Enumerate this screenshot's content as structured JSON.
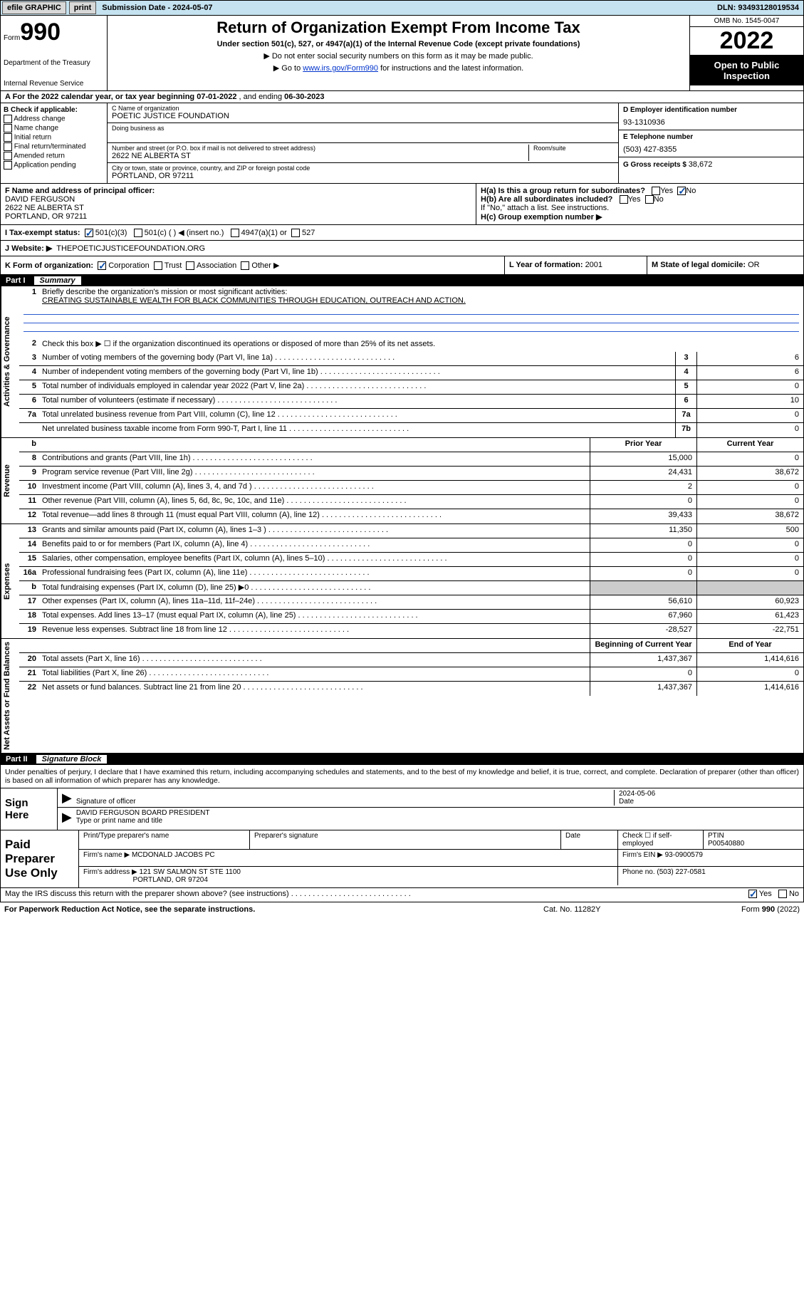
{
  "topbar": {
    "efile": "efile GRAPHIC",
    "print": "print",
    "submission_label": "Submission Date - ",
    "submission_date": "2024-05-07",
    "dln_label": "DLN: ",
    "dln": "93493128019534"
  },
  "header": {
    "form_word": "Form",
    "form_number": "990",
    "dept": "Department of the Treasury",
    "irs": "Internal Revenue Service",
    "title": "Return of Organization Exempt From Income Tax",
    "sub": "Under section 501(c), 527, or 4947(a)(1) of the Internal Revenue Code (except private foundations)",
    "note1": "▶ Do not enter social security numbers on this form as it may be made public.",
    "note2_pre": "▶ Go to ",
    "note2_link": "www.irs.gov/Form990",
    "note2_post": " for instructions and the latest information.",
    "omb": "OMB No. 1545-0047",
    "year": "2022",
    "open": "Open to Public Inspection"
  },
  "row_a": {
    "text_pre": "A For the 2022 calendar year, or tax year beginning ",
    "begin": "07-01-2022",
    "mid": " , and ending ",
    "end": "06-30-2023"
  },
  "col_b": {
    "title": "B Check if applicable:",
    "items": [
      "Address change",
      "Name change",
      "Initial return",
      "Final return/terminated",
      "Amended return",
      "Application pending"
    ]
  },
  "col_c": {
    "name_lbl": "C Name of organization",
    "name": "POETIC JUSTICE FOUNDATION",
    "dba_lbl": "Doing business as",
    "dba": "",
    "street_lbl": "Number and street (or P.O. box if mail is not delivered to street address)",
    "room_lbl": "Room/suite",
    "street": "2622 NE ALBERTA ST",
    "city_lbl": "City or town, state or province, country, and ZIP or foreign postal code",
    "city": "PORTLAND, OR  97211"
  },
  "col_d": {
    "ein_lbl": "D Employer identification number",
    "ein": "93-1310936",
    "phone_lbl": "E Telephone number",
    "phone": "(503) 427-8355",
    "gross_lbl": "G Gross receipts $ ",
    "gross": "38,672"
  },
  "row_f": {
    "f_lbl": "F Name and address of principal officer:",
    "f_name": "DAVID FERGUSON",
    "f_addr1": "2622 NE ALBERTA ST",
    "f_addr2": "PORTLAND, OR  97211",
    "i_lbl": "I   Tax-exempt status:",
    "i_501c3": "501(c)(3)",
    "i_501c": "501(c) (   ) ◀ (insert no.)",
    "i_4947": "4947(a)(1) or",
    "i_527": "527",
    "j_lbl": "J   Website: ▶",
    "j_val": "THEPOETICJUSTICEFOUNDATION.ORG",
    "ha_lbl": "H(a)  Is this a group return for subordinates?",
    "hb_lbl": "H(b)  Are all subordinates included?",
    "hb_note": "If \"No,\" attach a list. See instructions.",
    "hc_lbl": "H(c)  Group exemption number ▶",
    "yes": "Yes",
    "no": "No"
  },
  "row_k": {
    "k_lbl": "K Form of organization:",
    "k_corp": "Corporation",
    "k_trust": "Trust",
    "k_assoc": "Association",
    "k_other": "Other ▶",
    "l_lbl": "L Year of formation: ",
    "l_val": "2001",
    "m_lbl": "M State of legal domicile: ",
    "m_val": "OR"
  },
  "part1": {
    "name": "Part I",
    "title": "Summary",
    "q1_lbl": "Briefly describe the organization's mission or most significant activities:",
    "q1_val": "CREATING SUSTAINABLE WEALTH FOR BLACK COMMUNITIES THROUGH EDUCATION, OUTREACH AND ACTION.",
    "q2": "Check this box ▶ ☐ if the organization discontinued its operations or disposed of more than 25% of its net assets.",
    "vtabs": [
      "Activities & Governance",
      "Revenue",
      "Expenses",
      "Net Assets or Fund Balances"
    ],
    "colhdr_prior": "Prior Year",
    "colhdr_current": "Current Year",
    "colhdr_begin": "Beginning of Current Year",
    "colhdr_end": "End of Year",
    "rows_gov": [
      {
        "n": "3",
        "d": "Number of voting members of the governing body (Part VI, line 1a)",
        "b": "3",
        "v": "6"
      },
      {
        "n": "4",
        "d": "Number of independent voting members of the governing body (Part VI, line 1b)",
        "b": "4",
        "v": "6"
      },
      {
        "n": "5",
        "d": "Total number of individuals employed in calendar year 2022 (Part V, line 2a)",
        "b": "5",
        "v": "0"
      },
      {
        "n": "6",
        "d": "Total number of volunteers (estimate if necessary)",
        "b": "6",
        "v": "10"
      },
      {
        "n": "7a",
        "d": "Total unrelated business revenue from Part VIII, column (C), line 12",
        "b": "7a",
        "v": "0"
      },
      {
        "n": "",
        "d": "Net unrelated business taxable income from Form 990-T, Part I, line 11",
        "b": "7b",
        "v": "0"
      }
    ],
    "rows_rev": [
      {
        "n": "8",
        "d": "Contributions and grants (Part VIII, line 1h)",
        "p": "15,000",
        "c": "0"
      },
      {
        "n": "9",
        "d": "Program service revenue (Part VIII, line 2g)",
        "p": "24,431",
        "c": "38,672"
      },
      {
        "n": "10",
        "d": "Investment income (Part VIII, column (A), lines 3, 4, and 7d )",
        "p": "2",
        "c": "0"
      },
      {
        "n": "11",
        "d": "Other revenue (Part VIII, column (A), lines 5, 6d, 8c, 9c, 10c, and 11e)",
        "p": "0",
        "c": "0"
      },
      {
        "n": "12",
        "d": "Total revenue—add lines 8 through 11 (must equal Part VIII, column (A), line 12)",
        "p": "39,433",
        "c": "38,672"
      }
    ],
    "rows_exp": [
      {
        "n": "13",
        "d": "Grants and similar amounts paid (Part IX, column (A), lines 1–3 )",
        "p": "11,350",
        "c": "500"
      },
      {
        "n": "14",
        "d": "Benefits paid to or for members (Part IX, column (A), line 4)",
        "p": "0",
        "c": "0"
      },
      {
        "n": "15",
        "d": "Salaries, other compensation, employee benefits (Part IX, column (A), lines 5–10)",
        "p": "0",
        "c": "0"
      },
      {
        "n": "16a",
        "d": "Professional fundraising fees (Part IX, column (A), line 11e)",
        "p": "0",
        "c": "0"
      },
      {
        "n": "b",
        "d": "Total fundraising expenses (Part IX, column (D), line 25) ▶0",
        "p": "",
        "c": "",
        "shade": true
      },
      {
        "n": "17",
        "d": "Other expenses (Part IX, column (A), lines 11a–11d, 11f–24e)",
        "p": "56,610",
        "c": "60,923"
      },
      {
        "n": "18",
        "d": "Total expenses. Add lines 13–17 (must equal Part IX, column (A), line 25)",
        "p": "67,960",
        "c": "61,423"
      },
      {
        "n": "19",
        "d": "Revenue less expenses. Subtract line 18 from line 12",
        "p": "-28,527",
        "c": "-22,751"
      }
    ],
    "rows_net": [
      {
        "n": "20",
        "d": "Total assets (Part X, line 16)",
        "p": "1,437,367",
        "c": "1,414,616"
      },
      {
        "n": "21",
        "d": "Total liabilities (Part X, line 26)",
        "p": "0",
        "c": "0"
      },
      {
        "n": "22",
        "d": "Net assets or fund balances. Subtract line 21 from line 20",
        "p": "1,437,367",
        "c": "1,414,616"
      }
    ]
  },
  "part2": {
    "name": "Part II",
    "title": "Signature Block",
    "decl": "Under penalties of perjury, I declare that I have examined this return, including accompanying schedules and statements, and to the best of my knowledge and belief, it is true, correct, and complete. Declaration of preparer (other than officer) is based on all information of which preparer has any knowledge.",
    "sign_here": "Sign Here",
    "sig_officer_lbl": "Signature of officer",
    "date_lbl": "Date",
    "sig_date": "2024-05-06",
    "name_title": "DAVID FERGUSON  BOARD PRESIDENT",
    "name_title_lbl": "Type or print name and title",
    "paid_prep": "Paid Preparer Use Only",
    "pt_name_lbl": "Print/Type preparer's name",
    "pt_sig_lbl": "Preparer's signature",
    "pt_date_lbl": "Date",
    "pt_check_lbl": "Check ☐ if self-employed",
    "ptin_lbl": "PTIN",
    "ptin": "P00540880",
    "firm_name_lbl": "Firm's name    ▶",
    "firm_name": "MCDONALD JACOBS PC",
    "firm_ein_lbl": "Firm's EIN ▶",
    "firm_ein": "93-0900579",
    "firm_addr_lbl": "Firm's address ▶",
    "firm_addr1": "121 SW SALMON ST STE 1100",
    "firm_addr2": "PORTLAND, OR  97204",
    "firm_phone_lbl": "Phone no. ",
    "firm_phone": "(503) 227-0581",
    "may_discuss": "May the IRS discuss this return with the preparer shown above? (see instructions)",
    "yes": "Yes",
    "no": "No"
  },
  "footer": {
    "left": "For Paperwork Reduction Act Notice, see the separate instructions.",
    "mid": "Cat. No. 11282Y",
    "right": "Form 990 (2022)"
  }
}
